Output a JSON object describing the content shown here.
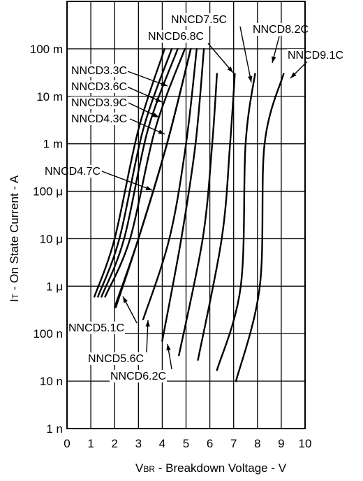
{
  "chart_data": {
    "type": "line",
    "x_axis": {
      "title_main": "V",
      "title_sub": "BR",
      "title_rest": " -  Breakdown Voltage  - V",
      "range": [
        0,
        10
      ],
      "ticks": [
        "0",
        "1",
        "2",
        "3",
        "4",
        "5",
        "6",
        "7",
        "8",
        "9",
        "10"
      ]
    },
    "y_axis": {
      "title_main": "I",
      "title_sub": "T",
      "title_rest": " -  On State Current  - A",
      "scale": "log",
      "range": [
        1e-09,
        1
      ],
      "ticks": [
        {
          "label": "1 n",
          "value": 1e-09
        },
        {
          "label": "10 n",
          "value": 1e-08
        },
        {
          "label": "100 n",
          "value": 1e-07
        },
        {
          "label": "1 μ",
          "value": 1e-06
        },
        {
          "label": "10 μ",
          "value": 1e-05
        },
        {
          "label": "100 μ",
          "value": 0.0001
        },
        {
          "label": "1 m",
          "value": 0.001
        },
        {
          "label": "10 m",
          "value": 0.01
        },
        {
          "label": "100 m",
          "value": 0.1
        }
      ]
    },
    "grid": true,
    "series": [
      {
        "name": "NNCD3.3C",
        "points": [
          [
            1.15,
            6e-07
          ],
          [
            2.0,
            1e-05
          ],
          [
            3.0,
            0.002
          ],
          [
            4.1,
            0.1
          ]
        ]
      },
      {
        "name": "NNCD3.6C",
        "points": [
          [
            1.3,
            6e-07
          ],
          [
            2.2,
            1e-05
          ],
          [
            3.2,
            0.002
          ],
          [
            4.4,
            0.1
          ]
        ]
      },
      {
        "name": "NNCD3.9C",
        "points": [
          [
            1.45,
            6e-07
          ],
          [
            2.4,
            1e-05
          ],
          [
            3.4,
            0.002
          ],
          [
            4.65,
            0.1
          ]
        ]
      },
      {
        "name": "NNCD4.3C",
        "points": [
          [
            1.6,
            6e-07
          ],
          [
            2.65,
            1e-05
          ],
          [
            3.7,
            0.002
          ],
          [
            4.95,
            0.1
          ]
        ]
      },
      {
        "name": "NNCD4.7C",
        "points": [
          [
            2.0,
            3.6e-07
          ],
          [
            3.0,
            1e-05
          ],
          [
            4.2,
            0.001
          ],
          [
            5.2,
            0.1
          ]
        ]
      },
      {
        "name": "NNCD5.1C",
        "points": [
          [
            2.05,
            3.6e-07
          ],
          [
            3.0,
            1e-05
          ],
          [
            4.2,
            0.001
          ],
          [
            5.2,
            0.1
          ]
        ]
      },
      {
        "name": "NNCD5.6C",
        "points": [
          [
            3.2,
            2e-07
          ],
          [
            4.3,
            1e-05
          ],
          [
            5.0,
            0.001
          ],
          [
            5.45,
            0.1
          ]
        ]
      },
      {
        "name": "NNCD6.2C",
        "points": [
          [
            4.0,
            7e-08
          ],
          [
            4.8,
            1e-05
          ],
          [
            5.4,
            0.001
          ],
          [
            5.75,
            0.1
          ]
        ]
      },
      {
        "name": "NNCD6.8C",
        "points": [
          [
            4.7,
            3.5e-08
          ],
          [
            5.7,
            1e-05
          ],
          [
            6.1,
            0.001
          ],
          [
            6.3,
            0.03
          ]
        ]
      },
      {
        "name": "NNCD7.5C",
        "points": [
          [
            5.5,
            2.8e-08
          ],
          [
            6.5,
            1e-05
          ],
          [
            6.85,
            0.001
          ],
          [
            7.05,
            0.03
          ]
        ]
      },
      {
        "name": "NNCD8.2C",
        "points": [
          [
            6.3,
            1.7e-08
          ],
          [
            7.3,
            1e-06
          ],
          [
            7.5,
            0.001
          ],
          [
            7.9,
            0.03
          ]
        ]
      },
      {
        "name": "NNCD9.1C",
        "points": [
          [
            7.1,
            1e-08
          ],
          [
            8.1,
            1e-06
          ],
          [
            8.3,
            0.001
          ],
          [
            9.1,
            0.03
          ]
        ]
      }
    ]
  }
}
